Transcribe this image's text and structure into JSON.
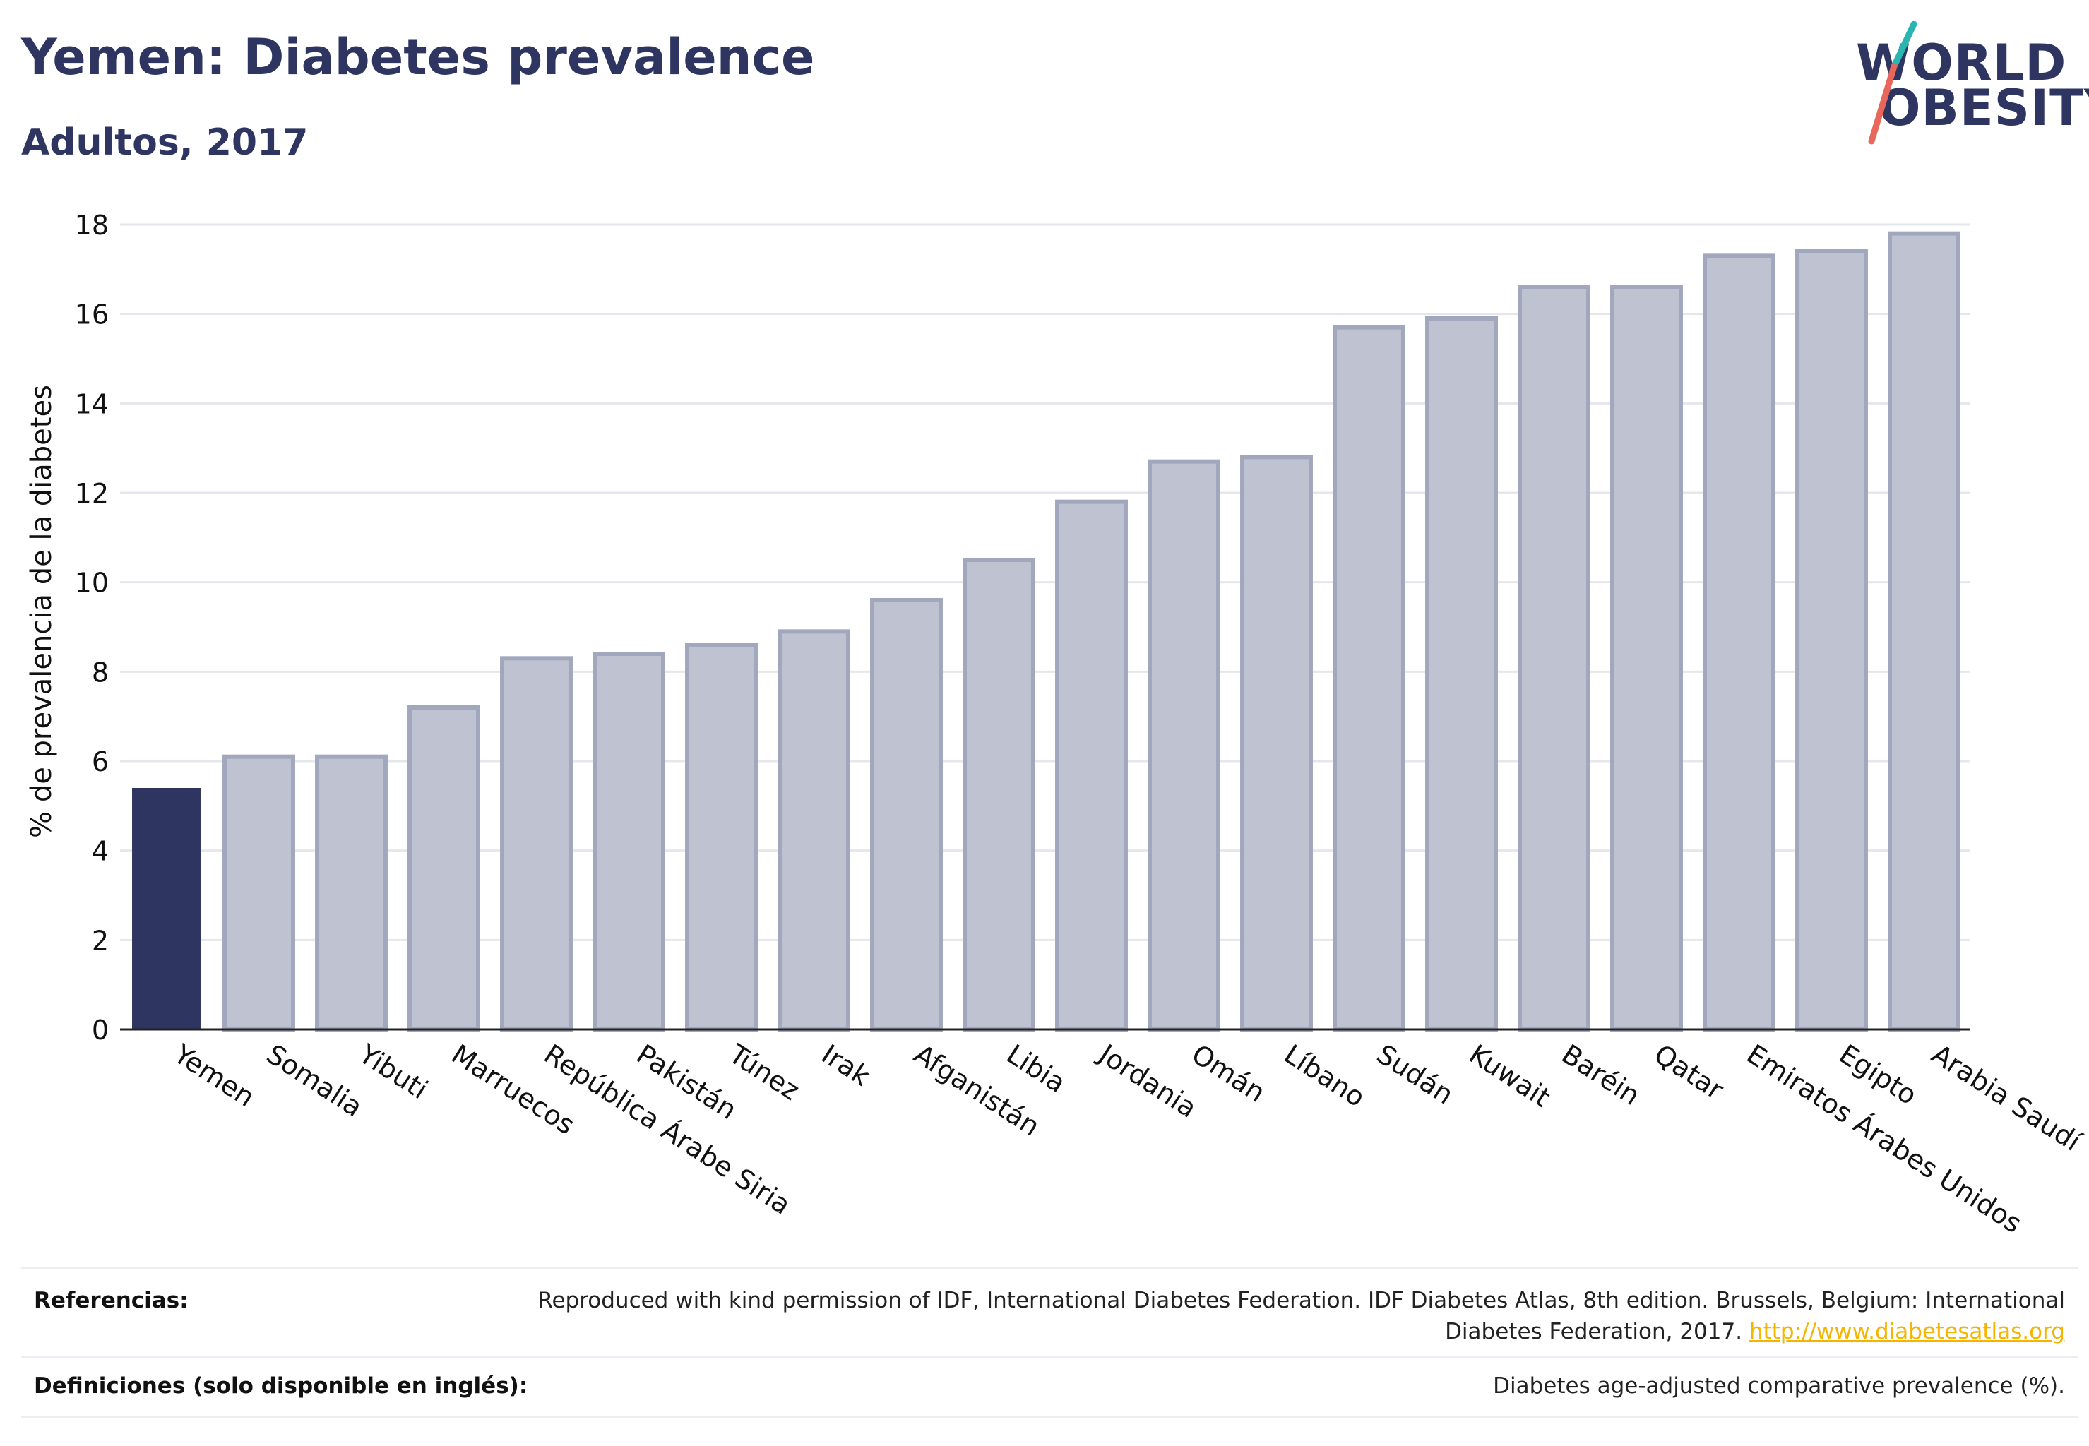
{
  "header": {
    "title": "Yemen: Diabetes prevalence",
    "subtitle": "Adultos, 2017"
  },
  "logo": {
    "line1": "WORLD",
    "line2": "OBESITY",
    "colors": {
      "text": "#2d3560",
      "slash_top": "#2bb5b0",
      "slash_bottom": "#e8675a"
    }
  },
  "chart_data": {
    "type": "bar",
    "ylabel": "% de prevalencia de la diabetes",
    "xlabel": "",
    "ylim": [
      0,
      18
    ],
    "yticks": [
      0,
      2,
      4,
      6,
      8,
      10,
      12,
      14,
      16,
      18
    ],
    "grid": true,
    "highlight": "Yemen",
    "categories": [
      "Yemen",
      "Somalia",
      "Yibuti",
      "Marruecos",
      "República Árabe Siria",
      "Pakistán",
      "Túnez",
      "Irak",
      "Afganistán",
      "Libia",
      "Jordania",
      "Omán",
      "Líbano",
      "Sudán",
      "Kuwait",
      "Baréin",
      "Qatar",
      "Emiratos Árabes Unidos",
      "Egipto",
      "Arabia Saudí"
    ],
    "values": [
      5.4,
      6.1,
      6.1,
      7.2,
      8.3,
      8.4,
      8.6,
      8.9,
      9.6,
      10.5,
      11.8,
      12.7,
      12.8,
      15.7,
      15.9,
      16.6,
      16.6,
      17.3,
      17.4,
      17.8
    ],
    "colors": {
      "highlight": "#2d3560",
      "bar": "#bfc3d1",
      "bar_border": "#a1a7bd"
    }
  },
  "footer": {
    "references_label": "Referencias:",
    "references_text": "Reproduced with kind permission of IDF, International Diabetes Federation. IDF Diabetes Atlas, 8th edition. Brussels, Belgium: International Diabetes Federation, 2017.",
    "references_link": "http://www.diabetesatlas.org",
    "definitions_label": "Definiciones (solo disponible en inglés):",
    "definitions_text": "Diabetes age-adjusted comparative prevalence (%)."
  }
}
